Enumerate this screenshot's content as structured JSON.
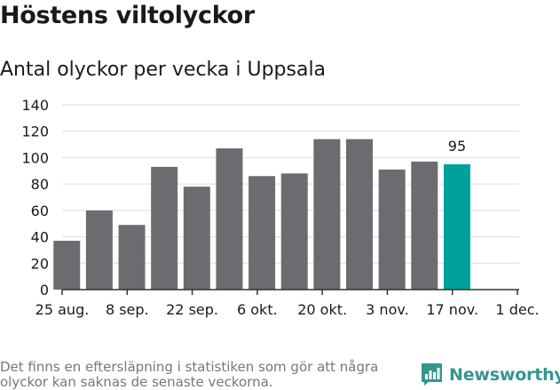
{
  "title": "Höstens viltolyckor",
  "subtitle": "Antal olyckor per vecka i Uppsala",
  "footnote": "Det finns en eftersläpning i statistiken som gör att några olyckor kan saknas de senaste veckorna.",
  "brand": {
    "name": "Newsworthy",
    "icon": "newsworthy-logo-icon",
    "color": "#35968f"
  },
  "colors": {
    "bar": "#6d6b70",
    "highlight": "#00a19a",
    "grid": "#dddddd",
    "axis": "#333333"
  },
  "chart_data": {
    "type": "bar",
    "title": "Antal olyckor per vecka i Uppsala",
    "xlabel": "",
    "ylabel": "",
    "ylim": [
      0,
      140
    ],
    "yticks": [
      0,
      20,
      40,
      60,
      80,
      100,
      120,
      140
    ],
    "grid": true,
    "legend": "none",
    "xticks": [
      "25 aug.",
      "8 sep.",
      "22 sep.",
      "6 okt.",
      "20 okt.",
      "3 nov.",
      "17 nov.",
      "1 dec."
    ],
    "categories": [
      "2019-08-26",
      "2019-09-02",
      "2019-09-09",
      "2019-09-16",
      "2019-09-23",
      "2019-09-30",
      "2019-10-07",
      "2019-10-14",
      "2019-10-21",
      "2019-10-28",
      "2019-11-04",
      "2019-11-11",
      "2019-11-18"
    ],
    "values": [
      37,
      60,
      49,
      93,
      78,
      107,
      86,
      88,
      114,
      114,
      91,
      97,
      95
    ],
    "highlight_index": 12,
    "data_labels": [
      "95"
    ]
  }
}
